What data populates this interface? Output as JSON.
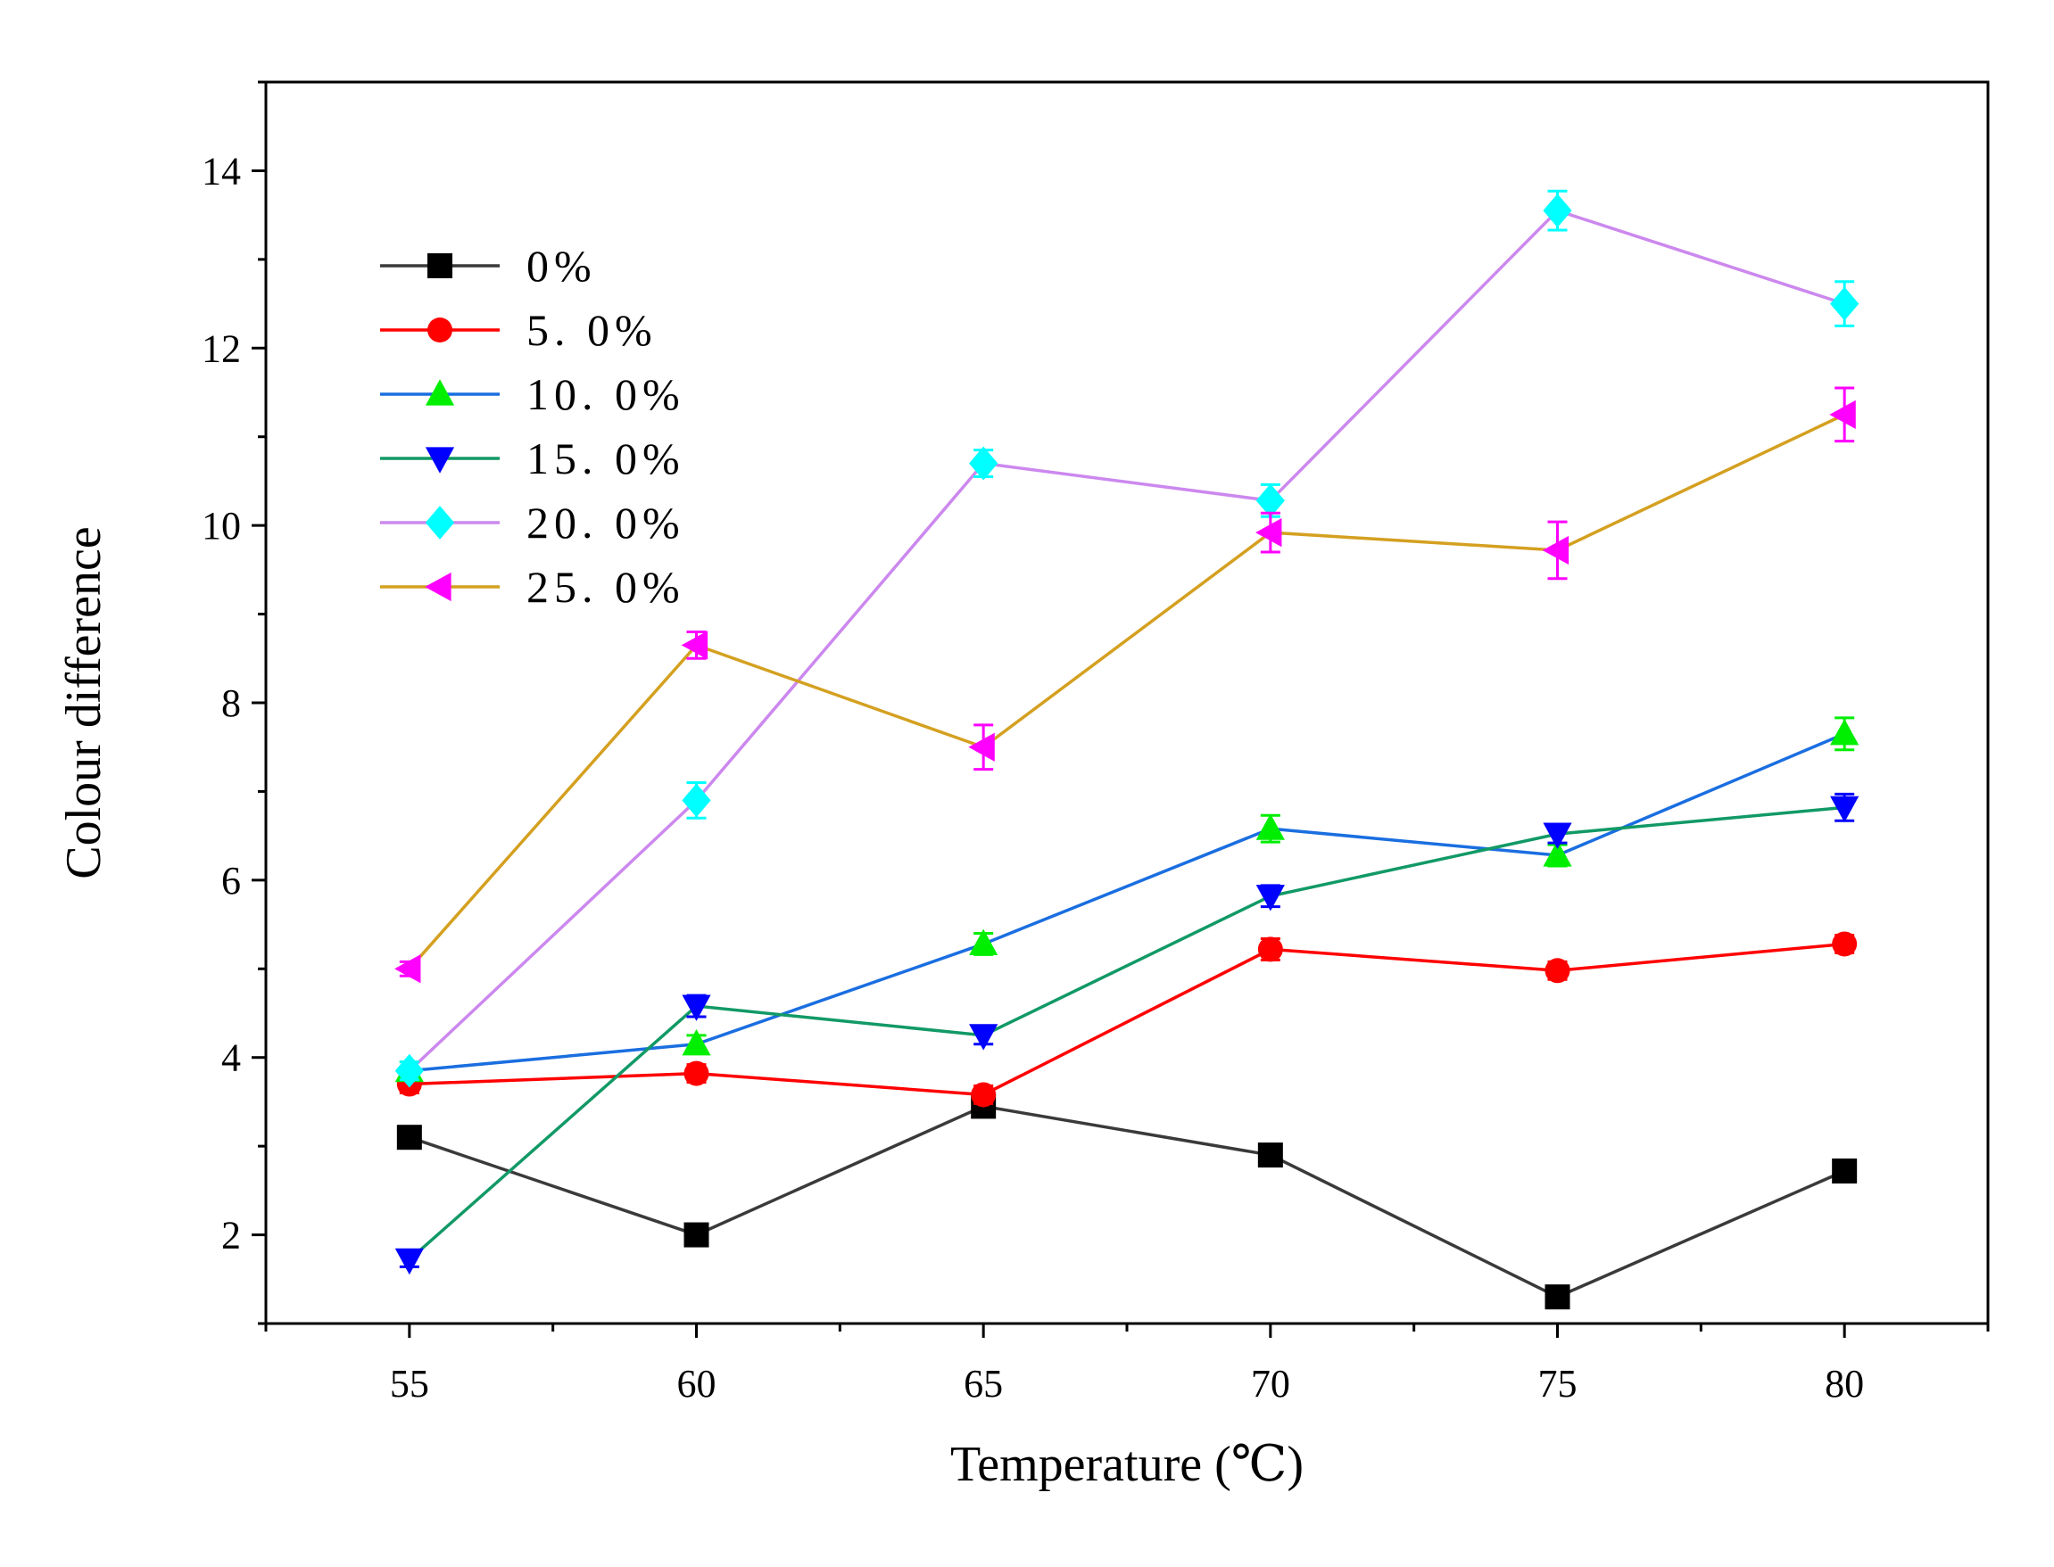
{
  "chart_data": {
    "type": "line",
    "title": "",
    "xlabel": "Temperature (℃)",
    "ylabel": "Colour difference",
    "x": [
      55,
      60,
      65,
      70,
      75,
      80
    ],
    "x_tick_labels": [
      "55",
      "60",
      "65",
      "70",
      "75",
      "80"
    ],
    "y_tick_labels": [
      "2",
      "4",
      "6",
      "8",
      "10",
      "12",
      "14"
    ],
    "y_ticks": [
      2,
      4,
      6,
      8,
      10,
      12,
      14
    ],
    "xlim": [
      52.5,
      82.5
    ],
    "ylim": [
      1,
      15
    ],
    "grid": false,
    "legend_position": "top-left",
    "series": [
      {
        "name": "0%",
        "color": "#3a3a3a",
        "marker": "square",
        "marker_color": "#000000",
        "values": [
          3.1,
          2.0,
          3.45,
          2.9,
          1.3,
          2.72
        ],
        "errors": [
          0.1,
          0.1,
          0.1,
          0.1,
          0.1,
          0.1
        ]
      },
      {
        "name": "5. 0%",
        "color": "#ff0000",
        "marker": "circle",
        "marker_color": "#ff0000",
        "values": [
          3.7,
          3.82,
          3.58,
          5.22,
          4.98,
          5.28
        ],
        "errors": [
          0.1,
          0.1,
          0.1,
          0.12,
          0.1,
          0.1
        ]
      },
      {
        "name": "10. 0%",
        "color": "#1a6ee0",
        "marker": "triangle-up",
        "marker_color": "#00ee00",
        "values": [
          3.85,
          4.15,
          5.28,
          6.58,
          6.28,
          7.65
        ],
        "errors": [
          0.1,
          0.1,
          0.12,
          0.15,
          0.12,
          0.18
        ]
      },
      {
        "name": "15. 0%",
        "color": "#119966",
        "marker": "triangle-down",
        "marker_color": "#0000ff",
        "values": [
          1.72,
          4.58,
          4.25,
          5.82,
          6.52,
          6.82
        ],
        "errors": [
          0.08,
          0.12,
          0.1,
          0.12,
          0.1,
          0.15
        ]
      },
      {
        "name": "20. 0%",
        "color": "#cc88ee",
        "marker": "diamond",
        "marker_color": "#00ffff",
        "values": [
          3.85,
          6.9,
          10.7,
          10.28,
          13.55,
          12.5
        ],
        "errors": [
          0.1,
          0.2,
          0.15,
          0.18,
          0.22,
          0.25
        ]
      },
      {
        "name": "25. 0%",
        "color": "#d4a020",
        "marker": "triangle-left",
        "marker_color": "#ff00ff",
        "values": [
          5.0,
          8.65,
          7.5,
          9.92,
          9.72,
          11.25
        ],
        "errors": [
          0.08,
          0.15,
          0.25,
          0.22,
          0.32,
          0.3
        ]
      }
    ]
  }
}
